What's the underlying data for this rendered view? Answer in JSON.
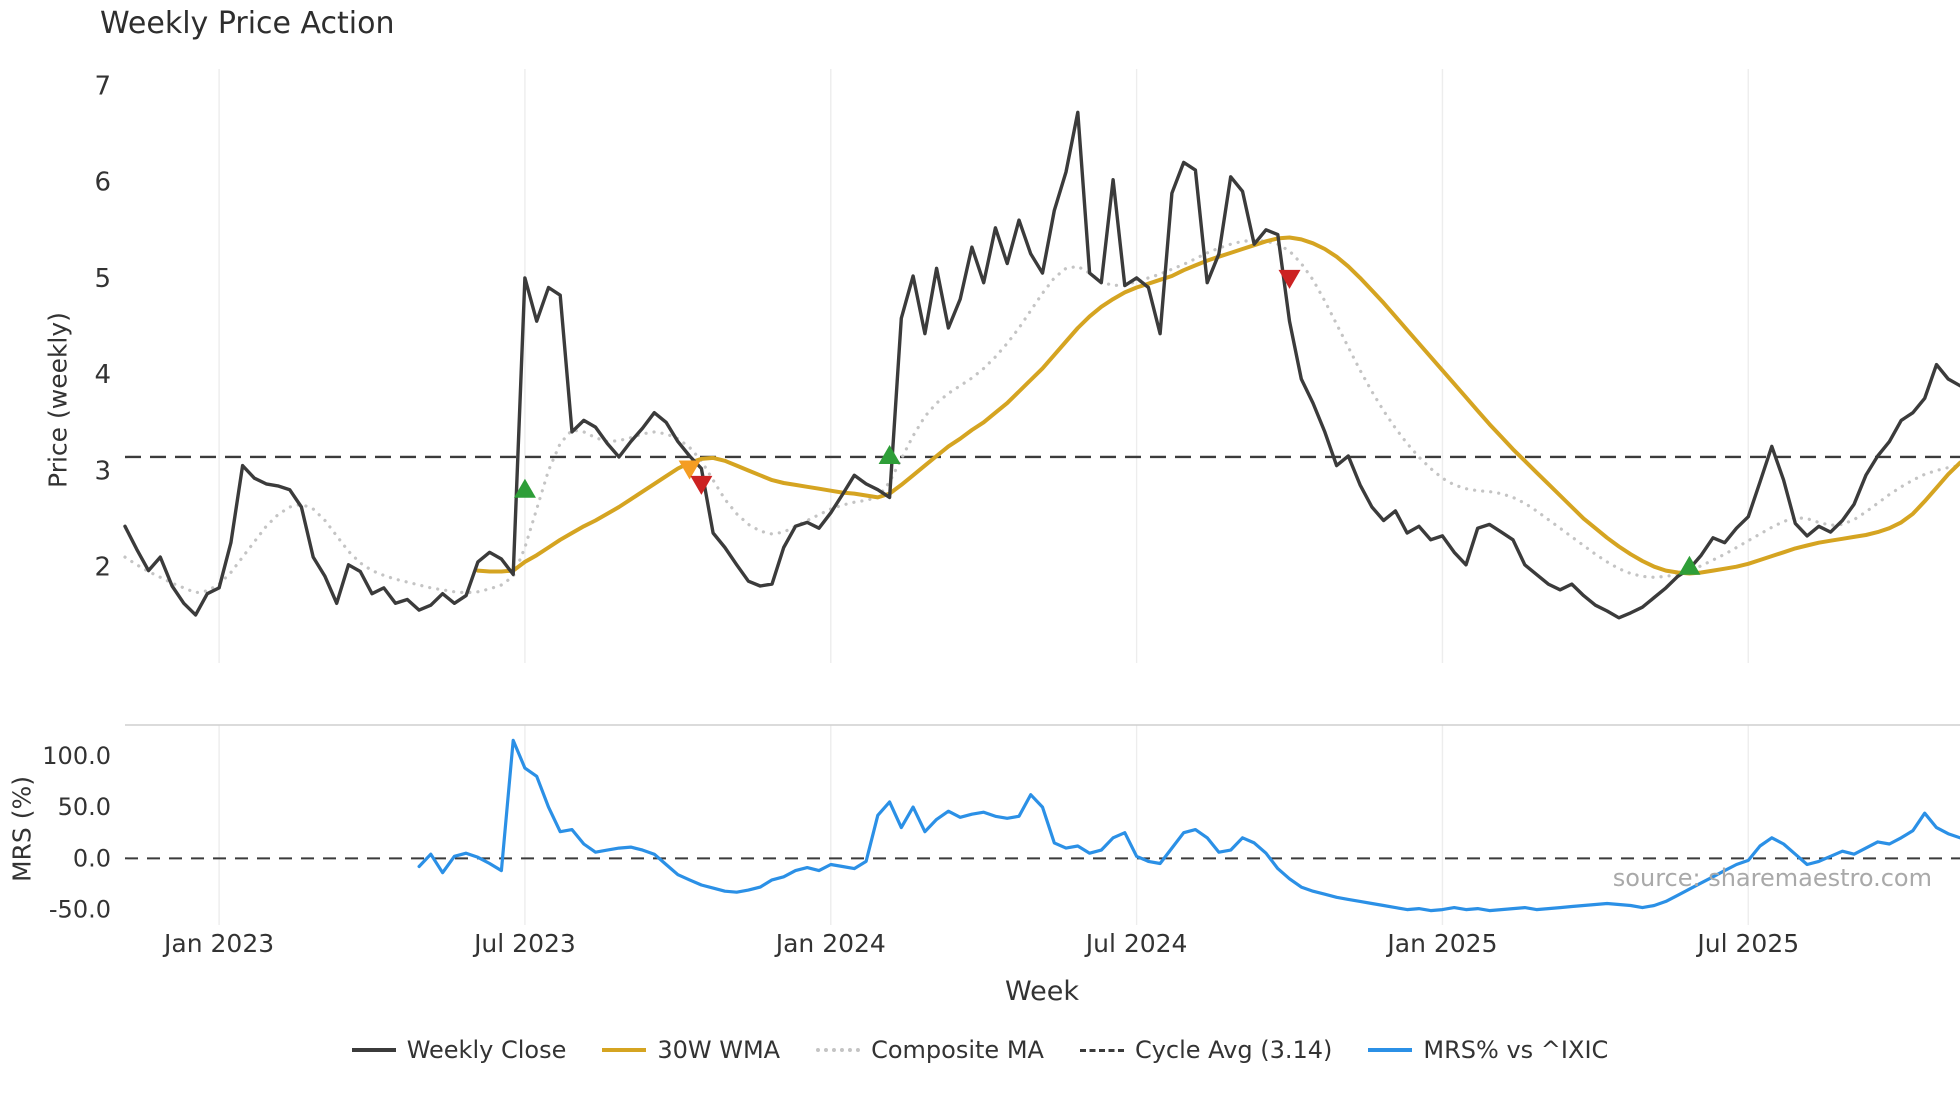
{
  "chart_data": {
    "type": "line",
    "title": "Weekly Price Action",
    "xlabel": "Week",
    "source_note": "source: sharemaestro.com",
    "xlim": [
      0,
      156
    ],
    "x_ticks": {
      "positions": [
        8,
        34,
        60,
        86,
        112,
        138
      ],
      "labels": [
        "Jan 2023",
        "Jul 2023",
        "Jan 2024",
        "Jul 2024",
        "Jan 2025",
        "Jul 2025"
      ]
    },
    "grid": "faint vertical gridlines at x ticks",
    "legend_position": "bottom center",
    "panels": [
      {
        "name": "price",
        "ylabel": "Price (weekly)",
        "ylim": [
          1.0,
          7.17
        ],
        "yticks": {
          "values": [
            7,
            6,
            5,
            4,
            3,
            2
          ],
          "labels": [
            "7",
            "6",
            "5",
            "4",
            "3",
            "2"
          ]
        },
        "cycle_avg": 3.14,
        "series": [
          {
            "name": "Weekly Close",
            "color": "#3b3b3b",
            "style": "solid",
            "width": 3.4,
            "start_week": 0,
            "values": [
              2.42,
              2.18,
              1.96,
              2.1,
              1.8,
              1.62,
              1.5,
              1.72,
              1.78,
              2.25,
              3.05,
              2.92,
              2.86,
              2.84,
              2.8,
              2.62,
              2.1,
              1.9,
              1.62,
              2.02,
              1.95,
              1.72,
              1.78,
              1.62,
              1.66,
              1.55,
              1.6,
              1.72,
              1.62,
              1.7,
              2.05,
              2.15,
              2.08,
              1.92,
              5.0,
              4.55,
              4.9,
              4.82,
              3.4,
              3.52,
              3.45,
              3.28,
              3.14,
              3.3,
              3.44,
              3.6,
              3.5,
              3.3,
              3.15,
              3.02,
              2.35,
              2.2,
              2.02,
              1.85,
              1.8,
              1.82,
              2.2,
              2.42,
              2.46,
              2.4,
              2.56,
              2.75,
              2.95,
              2.86,
              2.8,
              2.72,
              4.58,
              5.02,
              4.42,
              5.1,
              4.48,
              4.78,
              5.32,
              4.95,
              5.52,
              5.15,
              5.6,
              5.25,
              5.05,
              5.7,
              6.1,
              6.72,
              5.05,
              4.95,
              6.02,
              4.92,
              5.0,
              4.9,
              4.42,
              5.88,
              6.2,
              6.12,
              4.95,
              5.25,
              6.05,
              5.9,
              5.35,
              5.5,
              5.45,
              4.55,
              3.95,
              3.7,
              3.4,
              3.05,
              3.15,
              2.85,
              2.62,
              2.48,
              2.58,
              2.35,
              2.42,
              2.28,
              2.32,
              2.15,
              2.02,
              2.4,
              2.44,
              2.36,
              2.28,
              2.02,
              1.92,
              1.82,
              1.76,
              1.82,
              1.7,
              1.6,
              1.54,
              1.47,
              1.52,
              1.58,
              1.68,
              1.78,
              1.9,
              1.98,
              2.12,
              2.3,
              2.25,
              2.4,
              2.52,
              2.88,
              3.25,
              2.9,
              2.45,
              2.32,
              2.42,
              2.36,
              2.48,
              2.65,
              2.95,
              3.15,
              3.3,
              3.52,
              3.6,
              3.75,
              4.1,
              3.95,
              3.88
            ]
          },
          {
            "name": "30W WMA",
            "color": "#d5a421",
            "style": "solid",
            "width": 4,
            "start_week": 30,
            "values": [
              1.96,
              1.95,
              1.95,
              1.96,
              2.05,
              2.12,
              2.2,
              2.28,
              2.35,
              2.42,
              2.48,
              2.55,
              2.62,
              2.7,
              2.78,
              2.86,
              2.94,
              3.02,
              3.08,
              3.12,
              3.13,
              3.1,
              3.05,
              3.0,
              2.95,
              2.9,
              2.87,
              2.85,
              2.83,
              2.81,
              2.79,
              2.77,
              2.76,
              2.74,
              2.72,
              2.76,
              2.85,
              2.95,
              3.05,
              3.15,
              3.25,
              3.33,
              3.42,
              3.5,
              3.6,
              3.7,
              3.82,
              3.94,
              4.06,
              4.2,
              4.34,
              4.48,
              4.6,
              4.7,
              4.78,
              4.85,
              4.9,
              4.94,
              4.98,
              5.02,
              5.08,
              5.13,
              5.18,
              5.22,
              5.26,
              5.3,
              5.34,
              5.38,
              5.41,
              5.42,
              5.4,
              5.36,
              5.3,
              5.22,
              5.12,
              5.0,
              4.87,
              4.74,
              4.6,
              4.46,
              4.32,
              4.18,
              4.04,
              3.9,
              3.76,
              3.62,
              3.48,
              3.35,
              3.22,
              3.1,
              2.98,
              2.86,
              2.74,
              2.62,
              2.5,
              2.4,
              2.3,
              2.21,
              2.13,
              2.06,
              2.0,
              1.96,
              1.94,
              1.93,
              1.94,
              1.96,
              1.98,
              2.0,
              2.03,
              2.07,
              2.11,
              2.15,
              2.19,
              2.22,
              2.25,
              2.27,
              2.29,
              2.31,
              2.33,
              2.36,
              2.4,
              2.46,
              2.55,
              2.68,
              2.82,
              2.96,
              3.08
            ]
          },
          {
            "name": "Composite MA",
            "color": "#c4c4c4",
            "style": "dotted",
            "width": 3.2,
            "start_week": 0,
            "values": [
              2.1,
              2.02,
              1.95,
              1.89,
              1.83,
              1.78,
              1.73,
              1.75,
              1.82,
              1.94,
              2.1,
              2.26,
              2.42,
              2.54,
              2.62,
              2.65,
              2.6,
              2.48,
              2.32,
              2.16,
              2.04,
              1.96,
              1.91,
              1.87,
              1.84,
              1.81,
              1.78,
              1.76,
              1.74,
              1.73,
              1.74,
              1.77,
              1.81,
              1.9,
              2.2,
              2.6,
              3.0,
              3.28,
              3.42,
              3.4,
              3.34,
              3.3,
              3.31,
              3.34,
              3.38,
              3.4,
              3.38,
              3.33,
              3.24,
              3.1,
              2.9,
              2.7,
              2.55,
              2.44,
              2.37,
              2.34,
              2.36,
              2.42,
              2.48,
              2.54,
              2.6,
              2.64,
              2.67,
              2.69,
              2.72,
              2.88,
              3.12,
              3.36,
              3.56,
              3.7,
              3.8,
              3.88,
              3.96,
              4.06,
              4.18,
              4.32,
              4.48,
              4.66,
              4.84,
              5.0,
              5.1,
              5.12,
              5.05,
              4.96,
              4.92,
              4.93,
              4.96,
              5.0,
              5.04,
              5.09,
              5.14,
              5.2,
              5.26,
              5.31,
              5.35,
              5.38,
              5.39,
              5.38,
              5.35,
              5.28,
              5.15,
              4.98,
              4.76,
              4.52,
              4.28,
              4.04,
              3.82,
              3.62,
              3.44,
              3.28,
              3.14,
              3.02,
              2.92,
              2.85,
              2.81,
              2.79,
              2.78,
              2.76,
              2.72,
              2.66,
              2.58,
              2.49,
              2.4,
              2.31,
              2.22,
              2.13,
              2.05,
              1.98,
              1.93,
              1.9,
              1.89,
              1.9,
              1.92,
              1.96,
              2.01,
              2.07,
              2.13,
              2.2,
              2.27,
              2.34,
              2.41,
              2.47,
              2.51,
              2.5,
              2.46,
              2.43,
              2.44,
              2.49,
              2.57,
              2.66,
              2.75,
              2.83,
              2.9,
              2.96,
              3.0,
              3.03,
              3.05
            ]
          }
        ],
        "signals": [
          {
            "week": 34,
            "price": 2.8,
            "direction": "buy",
            "shape": "triangle-up",
            "color": "#2e9e38"
          },
          {
            "week": 48,
            "price": 3.02,
            "direction": "sell",
            "shape": "triangle-down",
            "color": "#f59d23"
          },
          {
            "week": 49,
            "price": 2.86,
            "direction": "sell",
            "shape": "triangle-down",
            "color": "#cc2222"
          },
          {
            "week": 65,
            "price": 3.15,
            "direction": "buy",
            "shape": "triangle-up",
            "color": "#2e9e38"
          },
          {
            "week": 99,
            "price": 5.0,
            "direction": "sell",
            "shape": "triangle-down",
            "color": "#cc2222"
          },
          {
            "week": 133,
            "price": 2.0,
            "direction": "buy",
            "shape": "triangle-up",
            "color": "#2e9e38"
          }
        ]
      },
      {
        "name": "mrs",
        "ylabel": "MRS (%)",
        "ylim": [
          -65,
          130
        ],
        "yticks": {
          "values": [
            100,
            50,
            0,
            -50
          ],
          "labels": [
            "100.0",
            "50.0",
            "0.0",
            "-50.0"
          ]
        },
        "zero_line": 0,
        "series": [
          {
            "name": "MRS% vs ^IXIC",
            "color": "#2b90e6",
            "style": "solid",
            "width": 3.2,
            "start_week": 25,
            "values": [
              -8,
              4,
              -14,
              2,
              5,
              1,
              -5,
              -12,
              115,
              88,
              80,
              50,
              26,
              28,
              14,
              6,
              8,
              10,
              11,
              8,
              4,
              -6,
              -16,
              -21,
              -26,
              -29,
              -32,
              -33,
              -31,
              -28,
              -21,
              -18,
              -12,
              -9,
              -12,
              -6,
              -8,
              -10,
              -3,
              42,
              55,
              30,
              50,
              26,
              38,
              46,
              40,
              43,
              45,
              41,
              39,
              41,
              62,
              50,
              15,
              10,
              12,
              5,
              8,
              20,
              25,
              2,
              -3,
              -5,
              10,
              25,
              28,
              20,
              6,
              8,
              20,
              15,
              5,
              -10,
              -20,
              -28,
              -32,
              -35,
              -38,
              -40,
              -42,
              -44,
              -46,
              -48,
              -50,
              -49,
              -51,
              -50,
              -48,
              -50,
              -49,
              -51,
              -50,
              -49,
              -48,
              -50,
              -49,
              -48,
              -47,
              -46,
              -45,
              -44,
              -45,
              -46,
              -48,
              -46,
              -42,
              -36,
              -30,
              -24,
              -18,
              -12,
              -6,
              -2,
              12,
              20,
              14,
              4,
              -6,
              -3,
              2,
              7,
              4,
              10,
              16,
              14,
              20,
              27,
              44,
              30,
              24,
              20
            ]
          }
        ]
      }
    ],
    "legend": [
      {
        "label": "Weekly Close",
        "color": "#3b3b3b",
        "style": "solid"
      },
      {
        "label": "30W WMA",
        "color": "#d5a421",
        "style": "solid"
      },
      {
        "label": "Composite MA",
        "color": "#c4c4c4",
        "style": "dotted"
      },
      {
        "label": "Cycle Avg (3.14)",
        "color": "#3b3b3b",
        "style": "dashed"
      },
      {
        "label": "MRS% vs ^IXIC",
        "color": "#2b90e6",
        "style": "solid"
      }
    ]
  }
}
